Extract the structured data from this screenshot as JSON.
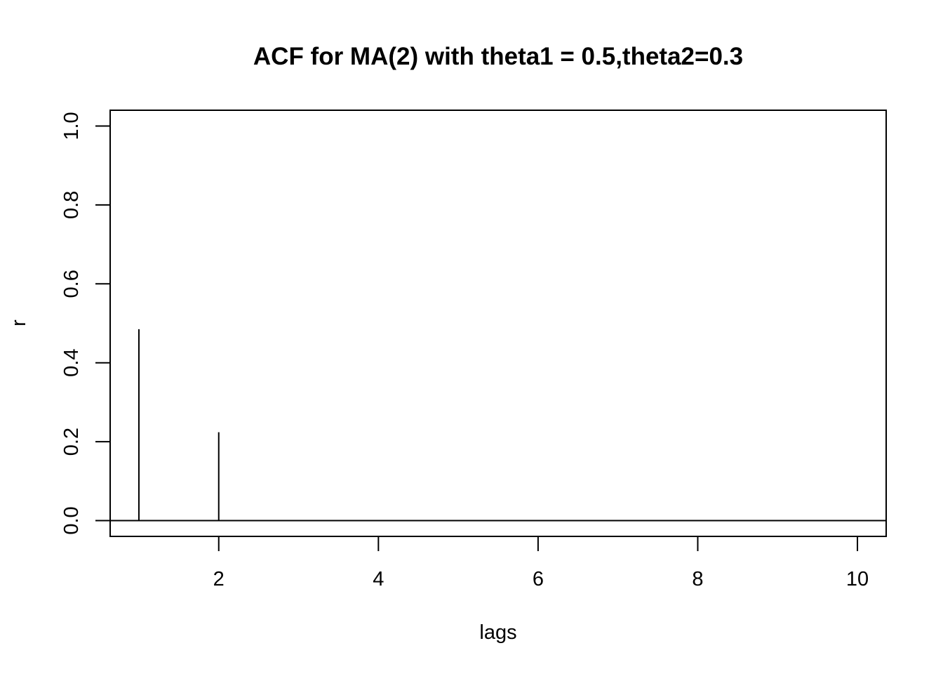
{
  "chart_data": {
    "type": "bar",
    "style": "vertical-lines (R type='h')",
    "title": "ACF for MA(2) with theta1 = 0.5,theta2=0.3",
    "xlabel": "lags",
    "ylabel": "r",
    "x": [
      1,
      2,
      3,
      4,
      5,
      6,
      7,
      8,
      9,
      10
    ],
    "values": [
      0.4851,
      0.2239,
      0,
      0,
      0,
      0,
      0,
      0,
      0,
      0
    ],
    "xlim": [
      0.64,
      10.36
    ],
    "ylim": [
      -0.04,
      1.04
    ],
    "xticks": [
      2,
      4,
      6,
      8,
      10
    ],
    "yticks": [
      0.0,
      0.2,
      0.4,
      0.6,
      0.8,
      1.0
    ],
    "xtick_labels": [
      "2",
      "4",
      "6",
      "8",
      "10"
    ],
    "ytick_labels": [
      "0.0",
      "0.2",
      "0.4",
      "0.6",
      "0.8",
      "1.0"
    ],
    "reference_line_y": 0,
    "grid": false,
    "legend": "none",
    "line_color": "#000000"
  }
}
